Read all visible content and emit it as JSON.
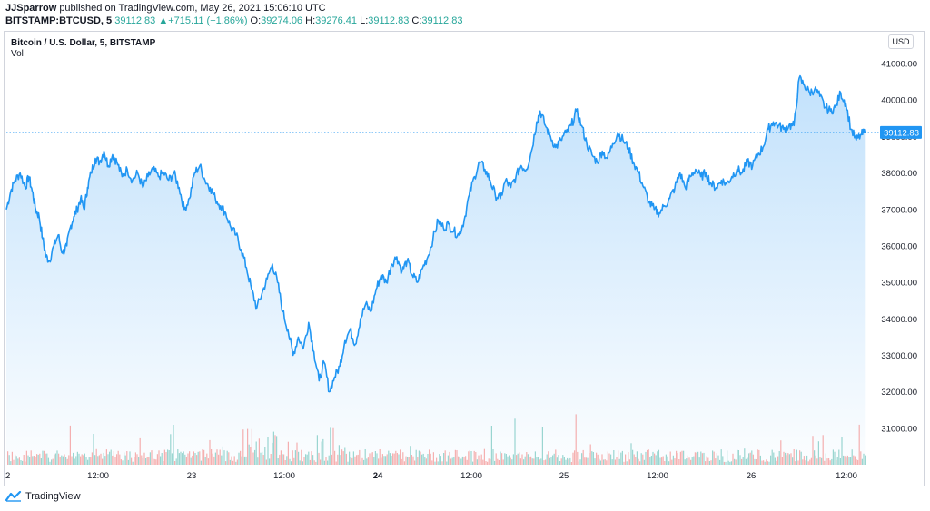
{
  "header": {
    "author": "JJSparrow",
    "published_text": "published on TradingView.com, May 26, 2021 15:06:10 UTC",
    "symbol": "BITSTAMP:BTCUSD, 5",
    "price": "39112.83",
    "change_arrow": "▲",
    "change": "+715.11 (+1.86%)",
    "o_label": "O:",
    "o_value": "39274.06",
    "h_label": "H:",
    "h_value": "39276.41",
    "l_label": "L:",
    "l_value": "39112.83",
    "c_label": "C:",
    "c_value": "39112.83"
  },
  "legend": {
    "title": "Bitcoin / U.S. Dollar, 5, BITSTAMP",
    "volume": "Vol"
  },
  "currency_button": "USD",
  "brand": {
    "name": "TradingView"
  },
  "colors": {
    "line": "#2196f3",
    "area_top": "#bbdefb",
    "up_volume": "#26a69a",
    "down_volume": "#ef5350",
    "price_tag": "#2196f3"
  },
  "chart_data": {
    "type": "area",
    "title": "Bitcoin / U.S. Dollar, 5, BITSTAMP",
    "x_ticks": [
      "2",
      "12:00",
      "23",
      "12:00",
      "24",
      "12:00",
      "25",
      "12:00",
      "26",
      "12:00"
    ],
    "y_ticks": [
      "31000.00",
      "32000.00",
      "33000.00",
      "34000.00",
      "35000.00",
      "36000.00",
      "37000.00",
      "38000.00",
      "39000.00",
      "40000.00",
      "41000.00"
    ],
    "ylim": [
      30000,
      41200
    ],
    "last_price_label": "39112.83",
    "last_price": 39112.83,
    "points": [
      [
        0,
        37000
      ],
      [
        0.5,
        37500
      ],
      [
        1,
        37800
      ],
      [
        1.6,
        38000
      ],
      [
        2.2,
        37600
      ],
      [
        2.6,
        37900
      ],
      [
        3.0,
        37500
      ],
      [
        3.4,
        37000
      ],
      [
        3.8,
        36800
      ],
      [
        4.2,
        36200
      ],
      [
        4.6,
        35700
      ],
      [
        5.0,
        35600
      ],
      [
        5.5,
        36000
      ],
      [
        6.0,
        36300
      ],
      [
        6.5,
        35800
      ],
      [
        7.0,
        36000
      ],
      [
        7.4,
        36500
      ],
      [
        7.8,
        36800
      ],
      [
        8.2,
        37000
      ],
      [
        8.6,
        37300
      ],
      [
        9.0,
        37000
      ],
      [
        9.4,
        37600
      ],
      [
        9.8,
        38000
      ],
      [
        10.3,
        38400
      ],
      [
        10.8,
        38300
      ],
      [
        11.3,
        38600
      ],
      [
        11.8,
        38200
      ],
      [
        12.3,
        38500
      ],
      [
        12.8,
        38300
      ],
      [
        13.4,
        37900
      ],
      [
        14.0,
        38100
      ],
      [
        14.6,
        37800
      ],
      [
        15.2,
        38000
      ],
      [
        15.8,
        37600
      ],
      [
        16.4,
        37900
      ],
      [
        17.0,
        38100
      ],
      [
        17.6,
        37900
      ],
      [
        18.2,
        38000
      ],
      [
        18.8,
        37800
      ],
      [
        19.4,
        38000
      ],
      [
        20.0,
        37600
      ],
      [
        20.6,
        37000
      ],
      [
        21.2,
        37300
      ],
      [
        21.8,
        38000
      ],
      [
        22.4,
        38200
      ],
      [
        23.0,
        37800
      ],
      [
        23.6,
        37600
      ],
      [
        24.2,
        37300
      ],
      [
        24.8,
        37100
      ],
      [
        25.4,
        36900
      ],
      [
        26.0,
        36500
      ],
      [
        26.6,
        36300
      ],
      [
        27.2,
        35900
      ],
      [
        27.8,
        35400
      ],
      [
        28.4,
        34800
      ],
      [
        29.0,
        34300
      ],
      [
        29.6,
        34700
      ],
      [
        30.2,
        35100
      ],
      [
        30.8,
        35500
      ],
      [
        31.4,
        35000
      ],
      [
        32.0,
        34200
      ],
      [
        32.6,
        33700
      ],
      [
        33.2,
        33000
      ],
      [
        33.8,
        33500
      ],
      [
        34.4,
        33200
      ],
      [
        35.0,
        33900
      ],
      [
        35.6,
        33100
      ],
      [
        36.2,
        32300
      ],
      [
        36.8,
        32800
      ],
      [
        37.4,
        32000
      ],
      [
        38.0,
        32400
      ],
      [
        38.6,
        32700
      ],
      [
        39.2,
        33400
      ],
      [
        39.8,
        33700
      ],
      [
        40.4,
        33300
      ],
      [
        41.0,
        34000
      ],
      [
        41.6,
        34400
      ],
      [
        42.2,
        34200
      ],
      [
        42.8,
        34800
      ],
      [
        43.4,
        35200
      ],
      [
        44.0,
        35000
      ],
      [
        44.6,
        35500
      ],
      [
        45.2,
        35700
      ],
      [
        45.8,
        35300
      ],
      [
        46.4,
        35600
      ],
      [
        47.0,
        35200
      ],
      [
        47.6,
        35000
      ],
      [
        48.2,
        35400
      ],
      [
        48.8,
        35700
      ],
      [
        49.4,
        36200
      ],
      [
        50.0,
        36700
      ],
      [
        50.6,
        36500
      ],
      [
        51.2,
        36600
      ],
      [
        51.8,
        36400
      ],
      [
        52.4,
        36300
      ],
      [
        53.0,
        36700
      ],
      [
        53.6,
        37400
      ],
      [
        54.2,
        37900
      ],
      [
        54.8,
        38300
      ],
      [
        55.4,
        38100
      ],
      [
        56.0,
        37800
      ],
      [
        56.6,
        37400
      ],
      [
        57.2,
        37300
      ],
      [
        57.8,
        37800
      ],
      [
        58.4,
        37600
      ],
      [
        59.0,
        37900
      ],
      [
        59.6,
        38200
      ],
      [
        60.2,
        38100
      ],
      [
        60.8,
        38600
      ],
      [
        61.4,
        39400
      ],
      [
        61.8,
        39700
      ],
      [
        62.4,
        39300
      ],
      [
        63.0,
        39000
      ],
      [
        63.6,
        38700
      ],
      [
        64.2,
        38900
      ],
      [
        64.8,
        39100
      ],
      [
        65.4,
        39300
      ],
      [
        66.0,
        39700
      ],
      [
        66.6,
        39300
      ],
      [
        67.2,
        38800
      ],
      [
        67.8,
        38500
      ],
      [
        68.4,
        38300
      ],
      [
        69.0,
        38600
      ],
      [
        69.6,
        38400
      ],
      [
        70.2,
        38800
      ],
      [
        70.8,
        39100
      ],
      [
        71.4,
        38900
      ],
      [
        72.0,
        38700
      ],
      [
        72.6,
        38300
      ],
      [
        73.2,
        38000
      ],
      [
        73.8,
        37600
      ],
      [
        74.4,
        37200
      ],
      [
        75.0,
        37000
      ],
      [
        75.6,
        36900
      ],
      [
        76.2,
        37100
      ],
      [
        76.8,
        37300
      ],
      [
        77.4,
        37600
      ],
      [
        78.0,
        38000
      ],
      [
        78.6,
        37600
      ],
      [
        79.2,
        37900
      ],
      [
        79.8,
        38100
      ],
      [
        80.4,
        37900
      ],
      [
        81.0,
        38000
      ],
      [
        81.6,
        37700
      ],
      [
        82.2,
        37600
      ],
      [
        82.8,
        37800
      ],
      [
        83.4,
        37700
      ],
      [
        84.0,
        37900
      ],
      [
        84.6,
        38100
      ],
      [
        85.2,
        38000
      ],
      [
        85.8,
        38300
      ],
      [
        86.4,
        38200
      ],
      [
        87.0,
        38500
      ],
      [
        87.6,
        38700
      ],
      [
        88.2,
        39200
      ],
      [
        88.8,
        39400
      ],
      [
        89.4,
        39300
      ],
      [
        90.0,
        39200
      ],
      [
        90.6,
        39300
      ],
      [
        91.2,
        39300
      ],
      [
        91.8,
        40600
      ],
      [
        92.4,
        40400
      ],
      [
        93.0,
        40200
      ],
      [
        93.6,
        40300
      ],
      [
        94.2,
        40100
      ],
      [
        94.8,
        39800
      ],
      [
        95.4,
        39700
      ],
      [
        96.0,
        39800
      ],
      [
        96.6,
        40200
      ],
      [
        97.2,
        39900
      ],
      [
        97.8,
        39200
      ],
      [
        98.4,
        38900
      ],
      [
        99.0,
        39050
      ],
      [
        99.4,
        39112.83
      ]
    ]
  }
}
